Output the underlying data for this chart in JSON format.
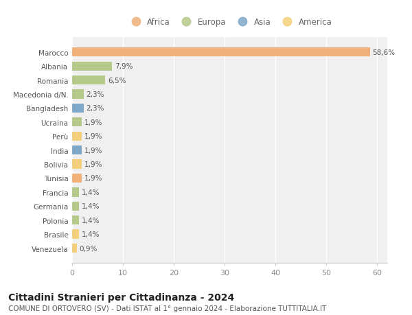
{
  "categories": [
    "Marocco",
    "Albania",
    "Romania",
    "Macedonia d/N.",
    "Bangladesh",
    "Ucraina",
    "Perù",
    "India",
    "Bolivia",
    "Tunisia",
    "Francia",
    "Germania",
    "Polonia",
    "Brasile",
    "Venezuela"
  ],
  "values": [
    58.6,
    7.9,
    6.5,
    2.3,
    2.3,
    1.9,
    1.9,
    1.9,
    1.9,
    1.9,
    1.4,
    1.4,
    1.4,
    1.4,
    0.9
  ],
  "labels": [
    "58,6%",
    "7,9%",
    "6,5%",
    "2,3%",
    "2,3%",
    "1,9%",
    "1,9%",
    "1,9%",
    "1,9%",
    "1,9%",
    "1,4%",
    "1,4%",
    "1,4%",
    "1,4%",
    "0,9%"
  ],
  "colors": [
    "#f0b27a",
    "#b5c98a",
    "#b5c98a",
    "#b5c98a",
    "#7fa8c9",
    "#b5c98a",
    "#f5d07a",
    "#7fa8c9",
    "#f5d07a",
    "#f0b27a",
    "#b5c98a",
    "#b5c98a",
    "#b5c98a",
    "#f5d07a",
    "#f5d07a"
  ],
  "continent_colors": {
    "Africa": "#f0b27a",
    "Europa": "#b5c98a",
    "Asia": "#7fa8c9",
    "America": "#f5d07a"
  },
  "legend_order": [
    "Africa",
    "Europa",
    "Asia",
    "America"
  ],
  "title": "Cittadini Stranieri per Cittadinanza - 2024",
  "subtitle": "COMUNE DI ORTOVERO (SV) - Dati ISTAT al 1° gennaio 2024 - Elaborazione TUTTITALIA.IT",
  "xlim": [
    0,
    62
  ],
  "xticks": [
    0,
    10,
    20,
    30,
    40,
    50,
    60
  ],
  "bg_color": "#ffffff",
  "plot_bg_color": "#f0f0f0",
  "grid_color": "#ffffff",
  "bar_height": 0.65,
  "label_fontsize": 7.5,
  "title_fontsize": 10,
  "subtitle_fontsize": 7.5,
  "ytick_fontsize": 7.5,
  "xtick_fontsize": 8,
  "legend_fontsize": 8.5
}
